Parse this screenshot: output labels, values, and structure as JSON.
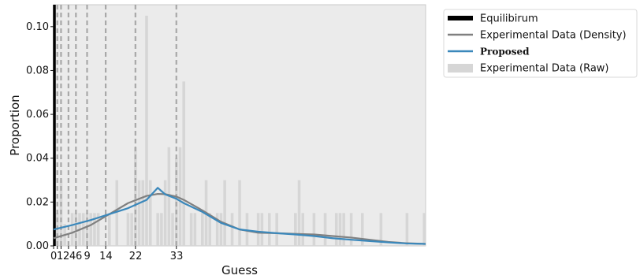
{
  "chart_data": {
    "type": "bar",
    "title": "",
    "xlabel": "Guess",
    "ylabel": "Proportion",
    "xlim": [
      0,
      100
    ],
    "ylim": [
      0,
      0.11
    ],
    "x_ticks": [
      0,
      1,
      2,
      4,
      6,
      9,
      14,
      22,
      33
    ],
    "x_tick_labels": [
      "0",
      "1",
      "2",
      "4",
      "6",
      "9",
      "14",
      "22",
      "33"
    ],
    "y_ticks": [
      0,
      0.02,
      0.04,
      0.06,
      0.08,
      0.1
    ],
    "y_tick_labels": [
      "0.00",
      "0.02",
      "0.04",
      "0.06",
      "0.08",
      "0.10"
    ],
    "background": "#ebebeb",
    "grid": false,
    "legend_position": "outside-top-right",
    "reference_lines": {
      "name": "Equilibirum",
      "x": [
        1,
        2,
        4,
        6,
        9,
        14,
        22,
        33
      ],
      "solid_x": 0,
      "solid_color": "#000000",
      "dashed_color": "#a8a8a8"
    },
    "series": [
      {
        "name": "Experimental Data (Raw)",
        "kind": "bar",
        "color": "#d6d6d6",
        "x": [
          0,
          1,
          2,
          3,
          5,
          6,
          7,
          8,
          9,
          10,
          11,
          12,
          15,
          17,
          20,
          21,
          22,
          23,
          24,
          25,
          26,
          28,
          29,
          30,
          31,
          32,
          33,
          34,
          35,
          37,
          38,
          40,
          41,
          42,
          44,
          45,
          46,
          48,
          50,
          52,
          55,
          56,
          58,
          60,
          65,
          66,
          67,
          70,
          73,
          76,
          77,
          78,
          80,
          83,
          88,
          95,
          100
        ],
        "values": [
          0.015,
          0.015,
          0.03,
          0.01,
          0.015,
          0.015,
          0.015,
          0.015,
          0.015,
          0.015,
          0.015,
          0.015,
          0.015,
          0.03,
          0.015,
          0.015,
          0.045,
          0.03,
          0.03,
          0.105,
          0.03,
          0.015,
          0.015,
          0.03,
          0.045,
          0.015,
          0.04,
          0.045,
          0.075,
          0.015,
          0.015,
          0.015,
          0.03,
          0.015,
          0.015,
          0.015,
          0.03,
          0.015,
          0.03,
          0.015,
          0.015,
          0.015,
          0.015,
          0.015,
          0.015,
          0.03,
          0.015,
          0.015,
          0.015,
          0.015,
          0.015,
          0.015,
          0.015,
          0.015,
          0.015,
          0.015,
          0.015
        ]
      },
      {
        "name": "Experimental Data (Density)",
        "kind": "line",
        "color": "#808080",
        "x": [
          0,
          5,
          10,
          15,
          20,
          25,
          28,
          30,
          33,
          35,
          40,
          45,
          50,
          55,
          60,
          65,
          70,
          75,
          80,
          85,
          90,
          95,
          100
        ],
        "values": [
          0.0035,
          0.006,
          0.0095,
          0.0145,
          0.0195,
          0.0228,
          0.0237,
          0.0236,
          0.0225,
          0.021,
          0.0162,
          0.011,
          0.0075,
          0.006,
          0.0058,
          0.0055,
          0.0052,
          0.0045,
          0.0038,
          0.0028,
          0.0018,
          0.0012,
          0.0009
        ]
      },
      {
        "name": "Proposed",
        "kind": "line",
        "color": "#3b88bb",
        "x": [
          0,
          5,
          10,
          15,
          20,
          25,
          28,
          30,
          33,
          35,
          40,
          45,
          50,
          55,
          60,
          65,
          70,
          75,
          80,
          85,
          90,
          95,
          100
        ],
        "values": [
          0.0075,
          0.0095,
          0.0118,
          0.0145,
          0.0172,
          0.021,
          0.0265,
          0.0235,
          0.0215,
          0.0195,
          0.0155,
          0.0105,
          0.0075,
          0.0065,
          0.0058,
          0.0052,
          0.0045,
          0.0035,
          0.0028,
          0.0022,
          0.0016,
          0.0011,
          0.0009
        ]
      }
    ],
    "legend": [
      {
        "label": "Equilibirum",
        "marker": "thick-line",
        "color": "#000000"
      },
      {
        "label": "Experimental Data (Density)",
        "marker": "line",
        "color": "#808080"
      },
      {
        "label": "Proposed",
        "marker": "line",
        "color": "#3b88bb",
        "bold": true
      },
      {
        "label": "Experimental Data (Raw)",
        "marker": "patch",
        "color": "#d6d6d6"
      }
    ]
  }
}
